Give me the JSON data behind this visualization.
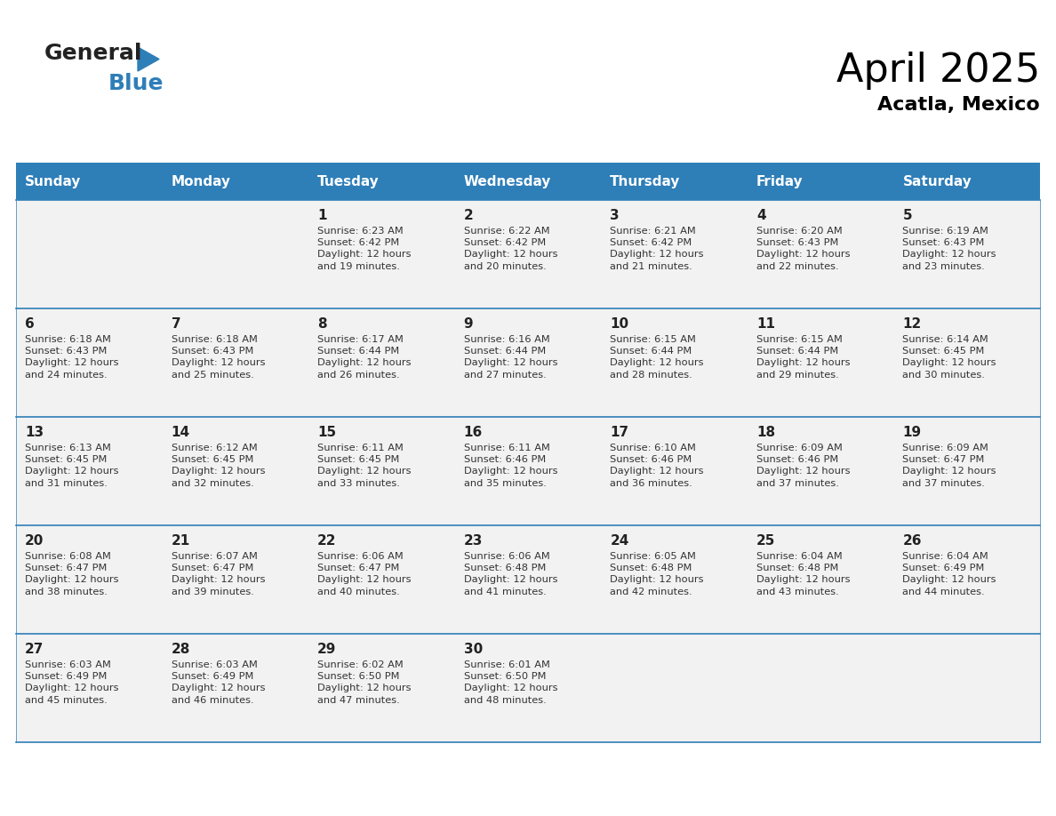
{
  "title": "April 2025",
  "subtitle": "Acatla, Mexico",
  "header_bg": "#2E7EB8",
  "header_text_color": "#FFFFFF",
  "cell_bg_light": "#F2F2F2",
  "cell_bg_white": "#FFFFFF",
  "text_color": "#333333",
  "line_color": "#2E7EB8",
  "days_of_week": [
    "Sunday",
    "Monday",
    "Tuesday",
    "Wednesday",
    "Thursday",
    "Friday",
    "Saturday"
  ],
  "calendar_data": [
    [
      {
        "day": "",
        "info": ""
      },
      {
        "day": "",
        "info": ""
      },
      {
        "day": "1",
        "info": "Sunrise: 6:23 AM\nSunset: 6:42 PM\nDaylight: 12 hours\nand 19 minutes."
      },
      {
        "day": "2",
        "info": "Sunrise: 6:22 AM\nSunset: 6:42 PM\nDaylight: 12 hours\nand 20 minutes."
      },
      {
        "day": "3",
        "info": "Sunrise: 6:21 AM\nSunset: 6:42 PM\nDaylight: 12 hours\nand 21 minutes."
      },
      {
        "day": "4",
        "info": "Sunrise: 6:20 AM\nSunset: 6:43 PM\nDaylight: 12 hours\nand 22 minutes."
      },
      {
        "day": "5",
        "info": "Sunrise: 6:19 AM\nSunset: 6:43 PM\nDaylight: 12 hours\nand 23 minutes."
      }
    ],
    [
      {
        "day": "6",
        "info": "Sunrise: 6:18 AM\nSunset: 6:43 PM\nDaylight: 12 hours\nand 24 minutes."
      },
      {
        "day": "7",
        "info": "Sunrise: 6:18 AM\nSunset: 6:43 PM\nDaylight: 12 hours\nand 25 minutes."
      },
      {
        "day": "8",
        "info": "Sunrise: 6:17 AM\nSunset: 6:44 PM\nDaylight: 12 hours\nand 26 minutes."
      },
      {
        "day": "9",
        "info": "Sunrise: 6:16 AM\nSunset: 6:44 PM\nDaylight: 12 hours\nand 27 minutes."
      },
      {
        "day": "10",
        "info": "Sunrise: 6:15 AM\nSunset: 6:44 PM\nDaylight: 12 hours\nand 28 minutes."
      },
      {
        "day": "11",
        "info": "Sunrise: 6:15 AM\nSunset: 6:44 PM\nDaylight: 12 hours\nand 29 minutes."
      },
      {
        "day": "12",
        "info": "Sunrise: 6:14 AM\nSunset: 6:45 PM\nDaylight: 12 hours\nand 30 minutes."
      }
    ],
    [
      {
        "day": "13",
        "info": "Sunrise: 6:13 AM\nSunset: 6:45 PM\nDaylight: 12 hours\nand 31 minutes."
      },
      {
        "day": "14",
        "info": "Sunrise: 6:12 AM\nSunset: 6:45 PM\nDaylight: 12 hours\nand 32 minutes."
      },
      {
        "day": "15",
        "info": "Sunrise: 6:11 AM\nSunset: 6:45 PM\nDaylight: 12 hours\nand 33 minutes."
      },
      {
        "day": "16",
        "info": "Sunrise: 6:11 AM\nSunset: 6:46 PM\nDaylight: 12 hours\nand 35 minutes."
      },
      {
        "day": "17",
        "info": "Sunrise: 6:10 AM\nSunset: 6:46 PM\nDaylight: 12 hours\nand 36 minutes."
      },
      {
        "day": "18",
        "info": "Sunrise: 6:09 AM\nSunset: 6:46 PM\nDaylight: 12 hours\nand 37 minutes."
      },
      {
        "day": "19",
        "info": "Sunrise: 6:09 AM\nSunset: 6:47 PM\nDaylight: 12 hours\nand 37 minutes."
      }
    ],
    [
      {
        "day": "20",
        "info": "Sunrise: 6:08 AM\nSunset: 6:47 PM\nDaylight: 12 hours\nand 38 minutes."
      },
      {
        "day": "21",
        "info": "Sunrise: 6:07 AM\nSunset: 6:47 PM\nDaylight: 12 hours\nand 39 minutes."
      },
      {
        "day": "22",
        "info": "Sunrise: 6:06 AM\nSunset: 6:47 PM\nDaylight: 12 hours\nand 40 minutes."
      },
      {
        "day": "23",
        "info": "Sunrise: 6:06 AM\nSunset: 6:48 PM\nDaylight: 12 hours\nand 41 minutes."
      },
      {
        "day": "24",
        "info": "Sunrise: 6:05 AM\nSunset: 6:48 PM\nDaylight: 12 hours\nand 42 minutes."
      },
      {
        "day": "25",
        "info": "Sunrise: 6:04 AM\nSunset: 6:48 PM\nDaylight: 12 hours\nand 43 minutes."
      },
      {
        "day": "26",
        "info": "Sunrise: 6:04 AM\nSunset: 6:49 PM\nDaylight: 12 hours\nand 44 minutes."
      }
    ],
    [
      {
        "day": "27",
        "info": "Sunrise: 6:03 AM\nSunset: 6:49 PM\nDaylight: 12 hours\nand 45 minutes."
      },
      {
        "day": "28",
        "info": "Sunrise: 6:03 AM\nSunset: 6:49 PM\nDaylight: 12 hours\nand 46 minutes."
      },
      {
        "day": "29",
        "info": "Sunrise: 6:02 AM\nSunset: 6:50 PM\nDaylight: 12 hours\nand 47 minutes."
      },
      {
        "day": "30",
        "info": "Sunrise: 6:01 AM\nSunset: 6:50 PM\nDaylight: 12 hours\nand 48 minutes."
      },
      {
        "day": "",
        "info": ""
      },
      {
        "day": "",
        "info": ""
      },
      {
        "day": "",
        "info": ""
      }
    ]
  ],
  "logo_text_general": "General",
  "logo_text_blue": "Blue",
  "logo_color_general": "#222222",
  "logo_color_blue": "#2E7EB8",
  "logo_triangle_color": "#2E7EB8"
}
